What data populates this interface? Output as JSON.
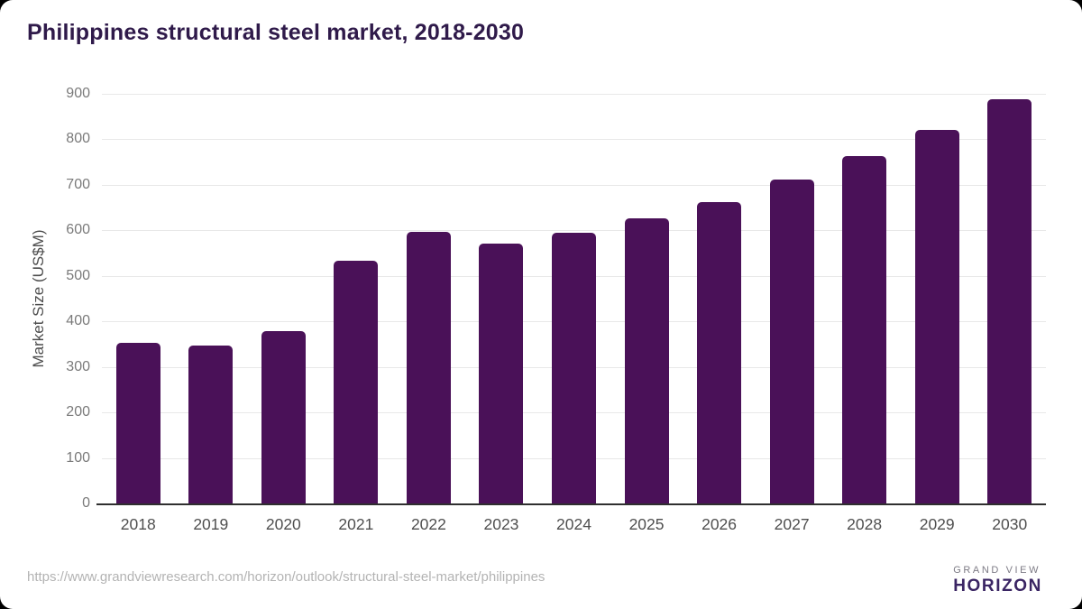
{
  "chart_data": {
    "type": "bar",
    "title": "Philippines structural steel market, 2018-2030",
    "categories": [
      "2018",
      "2019",
      "2020",
      "2021",
      "2022",
      "2023",
      "2024",
      "2025",
      "2026",
      "2027",
      "2028",
      "2029",
      "2030"
    ],
    "values": [
      352,
      347,
      378,
      534,
      596,
      571,
      594,
      626,
      663,
      711,
      764,
      821,
      888
    ],
    "xlabel": "",
    "ylabel": "Market Size (US$M)",
    "ylim": [
      0,
      900
    ],
    "yticks": [
      0,
      100,
      200,
      300,
      400,
      500,
      600,
      700,
      800,
      900
    ],
    "grid": true,
    "legend": false,
    "bar_color": "#4a1158"
  },
  "footer": {
    "source_url": "https://www.grandviewresearch.com/horizon/outlook/structural-steel-market/philippines",
    "brand": {
      "top": "GRAND VIEW",
      "bottom": "HORIZON"
    }
  },
  "colors": {
    "title_text": "#2f1a4a",
    "bar": "#4a1158",
    "gridline": "#e8e8e8",
    "axis_line": "#2f2f2f",
    "y_tick_text": "#7a7a7a",
    "x_tick_text": "#4f4f4f",
    "url_text": "#b3b3b3",
    "card_background": "#ffffff",
    "logo_purple": "#2b1b45",
    "logo_blue": "#62c3f0"
  }
}
